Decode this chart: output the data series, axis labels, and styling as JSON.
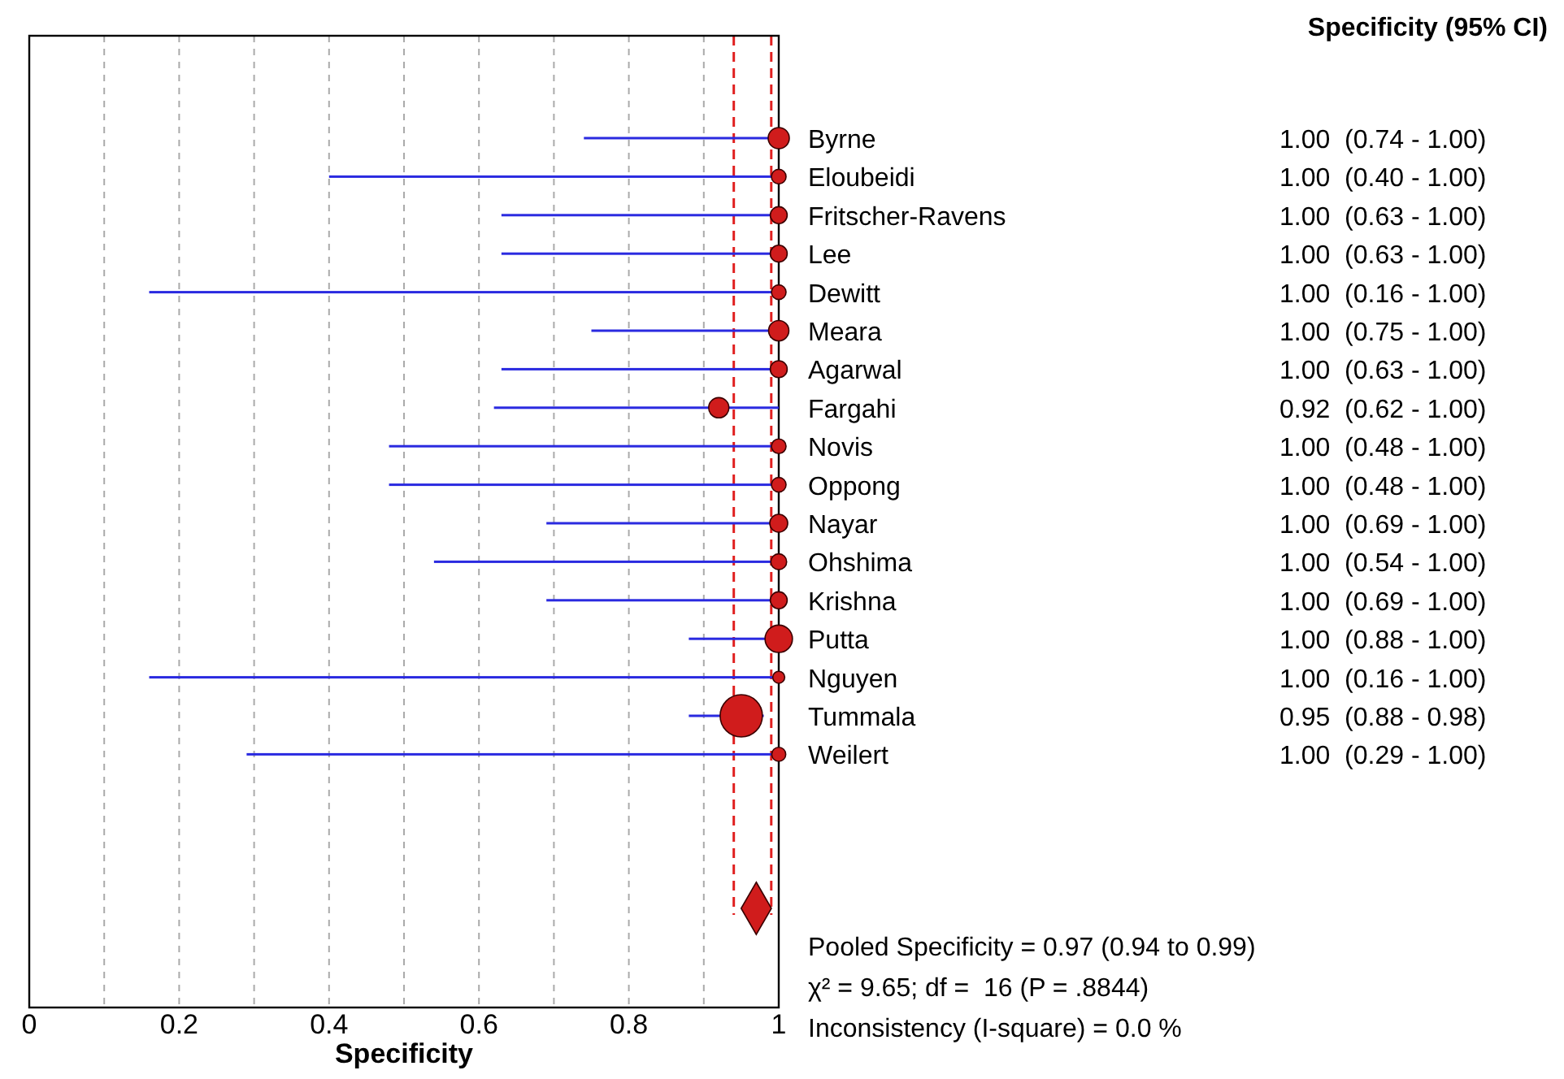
{
  "chart_data": {
    "type": "bubble",
    "orientation": "horizontal",
    "xlabel": "Specificity",
    "categories": [
      "Byrne",
      "Eloubeidi",
      "Fritscher-Ravens",
      "Lee",
      "Dewitt",
      "Meara",
      "Agarwal",
      "Fargahi",
      "Novis",
      "Oppong",
      "Nayar",
      "Ohshima",
      "Krishna",
      "Putta",
      "Nguyen",
      "Tummala",
      "Weilert",
      null,
      null,
      null,
      null
    ],
    "series": [
      {
        "color": "#d01c1c",
        "values": [
          1.0,
          1.0,
          1.0,
          1.0,
          1.0,
          1.0,
          1.0,
          0.92,
          1.0,
          1.0,
          1.0,
          1.0,
          1.0,
          1.0,
          1.0,
          0.95,
          1.0,
          null,
          null,
          null,
          null
        ],
        "errors": [
          [
            0.74,
            1.0
          ],
          [
            0.4,
            1.0
          ],
          [
            0.63,
            1.0
          ],
          [
            0.63,
            1.0
          ],
          [
            0.16,
            1.0
          ],
          [
            0.75,
            1.0
          ],
          [
            0.63,
            1.0
          ],
          [
            0.62,
            1.0
          ],
          [
            0.48,
            1.0
          ],
          [
            0.48,
            1.0
          ],
          [
            0.69,
            1.0
          ],
          [
            0.54,
            1.0
          ],
          [
            0.69,
            1.0
          ],
          [
            0.88,
            1.0
          ],
          [
            0.16,
            1.0
          ],
          [
            0.88,
            0.98
          ],
          [
            0.29,
            1.0
          ],
          null,
          null,
          null,
          null
        ],
        "sizes": [
          0.25,
          0.12,
          0.16,
          0.16,
          0.12,
          0.23,
          0.16,
          0.23,
          0.12,
          0.12,
          0.18,
          0.14,
          0.16,
          0.42,
          0.08,
          1,
          0.11,
          null,
          null,
          null,
          null
        ],
        "value_labels": [
          "1.00  (0.74 - 1.00)",
          "1.00  (0.40 - 1.00)",
          "1.00  (0.63 - 1.00)",
          "1.00  (0.63 - 1.00)",
          "1.00  (0.16 - 1.00)",
          "1.00  (0.75 - 1.00)",
          "1.00  (0.63 - 1.00)",
          "0.92  (0.62 - 1.00)",
          "1.00  (0.48 - 1.00)",
          "1.00  (0.48 - 1.00)",
          "1.00  (0.69 - 1.00)",
          "1.00  (0.54 - 1.00)",
          "1.00  (0.69 - 1.00)",
          "1.00  (0.88 - 1.00)",
          "1.00  (0.16 - 1.00)",
          "0.95  (0.88 - 0.98)",
          "1.00  (0.29 - 1.00)",
          null,
          null,
          null,
          null
        ]
      },
      {
        "type": "scatter",
        "marker": "diamond",
        "color": "#d01c1c",
        "values": [
          null,
          null,
          null,
          null,
          null,
          null,
          null,
          null,
          null,
          null,
          null,
          null,
          null,
          null,
          null,
          null,
          null,
          null,
          null,
          null,
          0.97
        ]
      }
    ],
    "xlim": [
      0,
      1
    ],
    "xticks": [
      0,
      {
        "value": 0.1,
        "label": null
      },
      0.2,
      {
        "value": 0.3,
        "label": null
      },
      0.4,
      {
        "value": 0.5,
        "label": null
      },
      0.6,
      {
        "value": 0.7,
        "label": null
      },
      0.8,
      {
        "value": 0.9,
        "label": null
      },
      1
    ],
    "grid": "x",
    "ref_lines": [
      {
        "axis": "x",
        "value": 0.94,
        "color": "#e02020",
        "line_style": "dashed"
      },
      {
        "axis": "x",
        "value": 0.99,
        "color": "#e02020",
        "line_style": "dashed"
      }
    ],
    "annotations": [
      "Specificity (95% CI)",
      "Pooled Specificity = 0.97 (0.94 to 0.99)",
      "χ² = 9.65; df =  16 (P = .8844)",
      "Inconsistency (I-square) = 0.0 %"
    ]
  }
}
